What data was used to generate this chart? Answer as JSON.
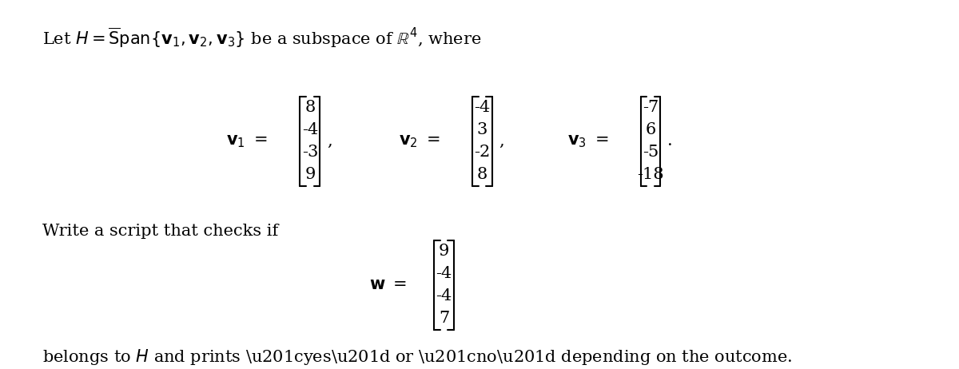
{
  "title_line": "Let $H = \\overline{\\text{S}}\\text{pan}\\{\\mathbf{v}_1, \\mathbf{v}_2, \\mathbf{v}_3\\}$ be a subspace of $\\mathbb{R}^4$, where",
  "v1": [
    "8",
    "-4",
    "-3",
    "9"
  ],
  "v2": [
    "-4",
    "3",
    "-2",
    "8"
  ],
  "v3": [
    "-7",
    "6",
    "-5",
    "-18"
  ],
  "w": [
    "9",
    "-4",
    "-4",
    "7"
  ],
  "write_line": "Write a script that checks if",
  "belongs_line": "belongs to $H$ and prints \\u201cyes\\u201d or \\u201cno\\u201d depending on the outcome.",
  "bg_color": "#ffffff",
  "text_color": "#000000",
  "fontsize_main": 15,
  "fontsize_math": 15
}
